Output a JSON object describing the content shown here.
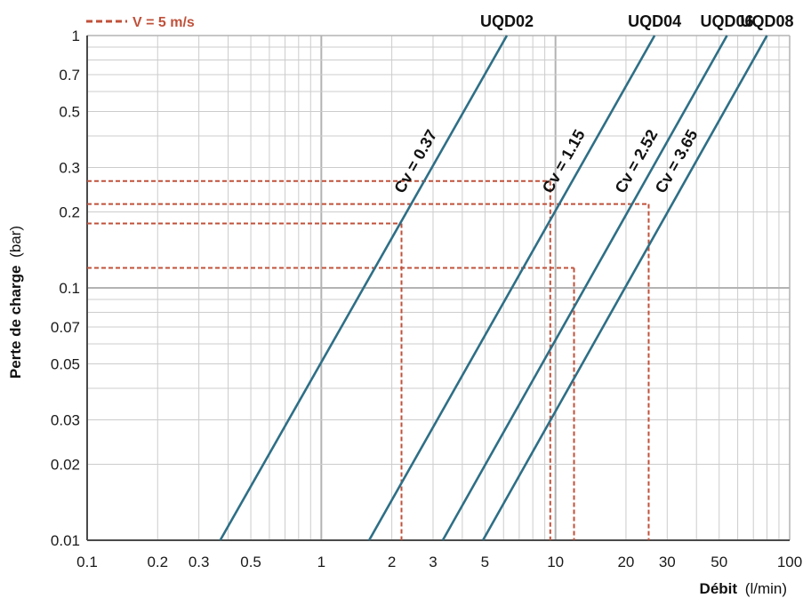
{
  "chart_data": {
    "type": "line",
    "xscale": "log",
    "yscale": "log",
    "xlim": [
      0.1,
      100
    ],
    "ylim": [
      0.01,
      1
    ],
    "grid": true,
    "xlabel": {
      "bold": "Débit",
      "unit": "(l/min)"
    },
    "ylabel": {
      "bold": "Perte de charge",
      "unit": "(bar)"
    },
    "x_ticks": [
      {
        "value": 0.1,
        "label": "0.1"
      },
      {
        "value": 0.2,
        "label": "0.2"
      },
      {
        "value": 0.3,
        "label": "0.3"
      },
      {
        "value": 0.5,
        "label": "0.5"
      },
      {
        "value": 1,
        "label": "1"
      },
      {
        "value": 2,
        "label": "2"
      },
      {
        "value": 3,
        "label": "3"
      },
      {
        "value": 5,
        "label": "5"
      },
      {
        "value": 10,
        "label": "10"
      },
      {
        "value": 20,
        "label": "20"
      },
      {
        "value": 30,
        "label": "30"
      },
      {
        "value": 50,
        "label": "50"
      },
      {
        "value": 100,
        "label": "100"
      }
    ],
    "y_ticks": [
      {
        "value": 0.01,
        "label": "0.01"
      },
      {
        "value": 0.02,
        "label": "0.02"
      },
      {
        "value": 0.03,
        "label": "0.03"
      },
      {
        "value": 0.05,
        "label": "0.05"
      },
      {
        "value": 0.07,
        "label": "0.07"
      },
      {
        "value": 0.1,
        "label": "0.1"
      },
      {
        "value": 0.2,
        "label": "0.2"
      },
      {
        "value": 0.3,
        "label": "0.3"
      },
      {
        "value": 0.5,
        "label": "0.5"
      },
      {
        "value": 0.7,
        "label": "0.7"
      },
      {
        "value": 1,
        "label": "1"
      }
    ],
    "legend": {
      "label": "V = 5 m/s",
      "style": "dashed",
      "color": "#c0513a",
      "position": "top-left"
    },
    "series": [
      {
        "name": "UQD02",
        "cv_label": "Cv = 0.37",
        "points": [
          [
            0.37,
            0.01
          ],
          [
            6.2,
            1
          ]
        ]
      },
      {
        "name": "UQD04",
        "cv_label": "Cv = 1.15",
        "points": [
          [
            1.6,
            0.01
          ],
          [
            26.5,
            1
          ]
        ]
      },
      {
        "name": "UQD06",
        "cv_label": "Cv = 2.52",
        "points": [
          [
            3.3,
            0.01
          ],
          [
            54,
            1
          ]
        ]
      },
      {
        "name": "UQD08",
        "cv_label": "Cv = 3.65",
        "points": [
          [
            4.9,
            0.01
          ],
          [
            80,
            1
          ]
        ]
      }
    ],
    "reference_points": [
      {
        "series": "UQD02",
        "x": 2.2,
        "y": 0.18
      },
      {
        "series": "UQD04",
        "x": 9.5,
        "y": 0.265
      },
      {
        "series": "UQD06",
        "x": 12,
        "y": 0.12
      },
      {
        "series": "UQD08",
        "x": 25,
        "y": 0.215
      }
    ],
    "colors": {
      "line": "#2e6f86",
      "reference": "#c0513a",
      "grid_major": "#b3b3b3",
      "grid_minor": "#cccccc"
    }
  }
}
